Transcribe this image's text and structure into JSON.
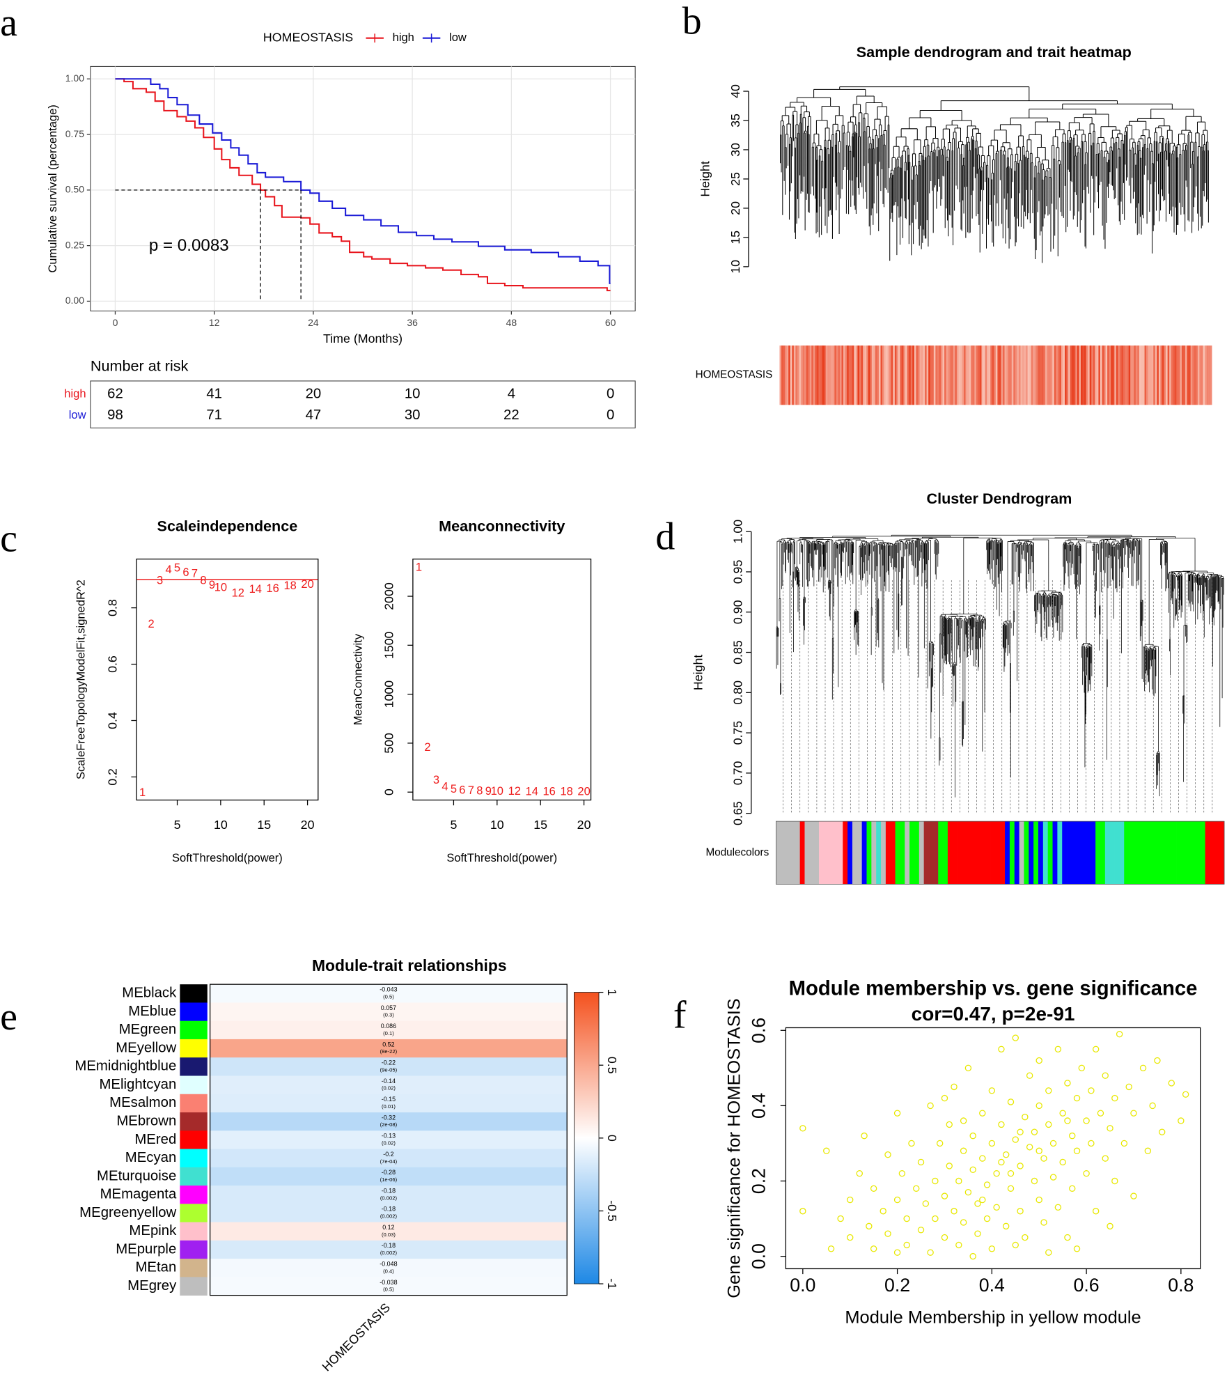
{
  "chart_data": [
    {
      "type": "survival",
      "panel_label": "a",
      "legend_title": "HOMEOSTASIS",
      "xlabel": "Time (Months)",
      "ylabel": "Cumulative survival (percentage)",
      "annotation": "p = 0.0083",
      "xlim": [
        -3.0,
        63.0
      ],
      "ylim": [
        -0.044,
        1.056
      ],
      "xticks": [
        0,
        12,
        24,
        36,
        48,
        60
      ],
      "yticks": [
        {
          "value": 0,
          "label": "0.00"
        },
        0.25,
        {
          "value": 0.5,
          "label": "0.50"
        },
        0.75,
        {
          "value": 1,
          "label": "1.00"
        }
      ],
      "grid": true,
      "median_level": 0.5,
      "series": [
        {
          "name": "high",
          "color": "#e8141c",
          "median": 17.6,
          "x": [
            0,
            1.07,
            2.15,
            3.76,
            4.83,
            5.9,
            7.5,
            8.6,
            9.66,
            10.7,
            12.0,
            12.9,
            13.9,
            15.0,
            16.6,
            17.6,
            18.2,
            19.3,
            20.2,
            22.5,
            23.6,
            24.7,
            26.3,
            27.4,
            28.4,
            30.1,
            31.1,
            33.3,
            35.4,
            37.6,
            39.7,
            41.9,
            44.0,
            45.1,
            47.2,
            49.4,
            59.6,
            60
          ],
          "values": [
            1,
            0.988,
            0.956,
            0.94,
            0.9,
            0.857,
            0.83,
            0.81,
            0.78,
            0.737,
            0.685,
            0.637,
            0.6,
            0.566,
            0.526,
            0.5,
            0.47,
            0.43,
            0.378,
            0.375,
            0.347,
            0.307,
            0.29,
            0.27,
            0.22,
            0.2,
            0.19,
            0.17,
            0.16,
            0.15,
            0.14,
            0.12,
            0.11,
            0.08,
            0.07,
            0.06,
            0.048,
            0.048
          ]
        },
        {
          "name": "low",
          "color": "#1a1ad6",
          "median": 22.5,
          "x": [
            0,
            3.76,
            4.3,
            5.4,
            6.4,
            7.5,
            8.8,
            10.2,
            11.8,
            12.9,
            14,
            15,
            16.1,
            17.2,
            18.2,
            20.4,
            22.5,
            23.6,
            24.7,
            26.3,
            27.9,
            30.1,
            32.2,
            34.3,
            36.5,
            38.6,
            40.8,
            44,
            47.2,
            50.4,
            53.7,
            56.3,
            58.5,
            59.9,
            60
          ],
          "values": [
            1,
            1,
            0.976,
            0.956,
            0.916,
            0.884,
            0.837,
            0.797,
            0.757,
            0.725,
            0.69,
            0.657,
            0.618,
            0.578,
            0.558,
            0.538,
            0.5,
            0.486,
            0.45,
            0.418,
            0.386,
            0.366,
            0.339,
            0.31,
            0.295,
            0.279,
            0.267,
            0.247,
            0.231,
            0.219,
            0.2,
            0.18,
            0.16,
            0.08,
            0.08
          ]
        }
      ],
      "risk_table": {
        "title": "Number at risk",
        "rows": [
          {
            "name": "high",
            "counts": [
              62,
              41,
              20,
              10,
              4,
              0
            ]
          },
          {
            "name": "low",
            "counts": [
              98,
              71,
              47,
              30,
              22,
              0
            ]
          }
        ]
      }
    },
    {
      "type": "dendrogram",
      "panel_label": "b",
      "title": "Sample dendrogram and trait heatmap",
      "ylabel": "Height",
      "ylim": [
        10,
        40
      ],
      "yticks": [
        10,
        15,
        20,
        25,
        30,
        35,
        40
      ],
      "heatmap_label": "HOMEOSTASIS"
    },
    {
      "type": "scatter",
      "marker": "text",
      "panel_label": "c",
      "title": "Scaleindependence",
      "xlabel": "SoftThreshold(power)",
      "ylabel": "ScaleFreeTopologyModelFit,signedR^2",
      "color": "#ee1c1c",
      "hline": 0.9,
      "x": [
        1,
        2,
        3,
        4,
        5,
        6,
        7,
        8,
        9,
        10,
        12,
        14,
        16,
        18,
        20
      ],
      "values": [
        0.143,
        0.741,
        0.895,
        0.933,
        0.939,
        0.923,
        0.92,
        0.895,
        0.879,
        0.87,
        0.851,
        0.864,
        0.867,
        0.876,
        0.882
      ],
      "xlim": [
        0.31,
        21.22
      ],
      "ylim": [
        0.118,
        0.973
      ],
      "xticks": [
        5,
        10,
        15,
        20
      ],
      "yticks": [
        0.2,
        0.4,
        0.6,
        0.8
      ]
    },
    {
      "type": "scatter",
      "marker": "text",
      "title": "Meanconnectivity",
      "xlabel": "SoftThreshold(power)",
      "ylabel": "MeanConnectivity",
      "color": "#ee1c1c",
      "x": [
        1,
        2,
        3,
        4,
        5,
        6,
        7,
        8,
        9,
        10,
        12,
        14,
        16,
        18,
        20
      ],
      "values": [
        2290,
        452,
        118,
        50,
        25,
        15,
        10,
        7,
        5,
        4,
        3,
        2,
        1.5,
        1,
        1
      ],
      "xlim": [
        0.31,
        20.8
      ],
      "ylim": [
        -81,
        2380
      ],
      "xticks": [
        5,
        10,
        15,
        20
      ],
      "yticks": [
        0,
        500,
        1000,
        1500,
        2000
      ]
    },
    {
      "type": "dendrogram",
      "panel_label": "d",
      "title": "Cluster Dendrogram",
      "ylabel": "Height",
      "ylim": [
        0.65,
        1.0
      ],
      "yticks": [
        0.65,
        {
          "value": 0.7,
          "label": "0.70"
        },
        0.75,
        {
          "value": 0.8,
          "label": "0.80"
        },
        0.85,
        {
          "value": 0.9,
          "label": "0.90"
        },
        0.95,
        {
          "value": 1,
          "label": "1.00"
        }
      ],
      "band_label": "Modulecolors",
      "band_colors": [
        "#bebebe",
        "#bebebe",
        "#bebebe",
        "#bebebe",
        "#bebebe",
        "#ff0000",
        "#bebebe",
        "#bebebe",
        "#bebebe",
        "#ffc0cb",
        "#ffc0cb",
        "#ffc0cb",
        "#ffc0cb",
        "#ffc0cb",
        "#ff0000",
        "#0000ff",
        "#bebebe",
        "#bebebe",
        "#0000ff",
        "#00ff00",
        "#bebebe",
        "#40e0d0",
        "#bebebe",
        "#ff0000",
        "#ff0000",
        "#00ff00",
        "#00ff00",
        "#bebebe",
        "#00ff00",
        "#00ff00",
        "#bebebe",
        "#a52a2a",
        "#a52a2a",
        "#a52a2a",
        "#00ff00",
        "#00ff00",
        "#ff0000",
        "#ff0000",
        "#ff0000",
        "#ff0000",
        "#ff0000",
        "#ff0000",
        "#ff0000",
        "#ff0000",
        "#ff0000",
        "#ff0000",
        "#ff0000",
        "#ff0000",
        "#0000ff",
        "#00ff00",
        "#0000ff",
        "#bebebe",
        "#00ff00",
        "#0000ff",
        "#00ff00",
        "#0000ff",
        "#40e0d0",
        "#00ff00",
        "#0000ff",
        "#40e0d0",
        "#0000ff",
        "#0000ff",
        "#0000ff",
        "#0000ff",
        "#0000ff",
        "#0000ff",
        "#0000ff",
        "#00ff00",
        "#00ff00",
        "#40e0d0",
        "#40e0d0",
        "#40e0d0",
        "#40e0d0",
        "#00ff00",
        "#00ff00",
        "#00ff00",
        "#00ff00",
        "#00ff00",
        "#00ff00",
        "#00ff00",
        "#00ff00",
        "#00ff00",
        "#00ff00",
        "#00ff00",
        "#00ff00",
        "#00ff00",
        "#00ff00",
        "#00ff00",
        "#00ff00",
        "#00ff00",
        "#ff0000",
        "#ff0000",
        "#ff0000",
        "#ff0000"
      ]
    },
    {
      "type": "heatmap",
      "panel_label": "e",
      "title": "Module-trait relationships",
      "xlabel": "HOMEOSTASIS",
      "categories": [
        "MEblack",
        "MEblue",
        "MEgreen",
        "MEyellow",
        "MEmidnightblue",
        "MElightcyan",
        "MEsalmon",
        "MEbrown",
        "MEred",
        "MEcyan",
        "MEturquoise",
        "MEmagenta",
        "MEgreenyellow",
        "MEpink",
        "MEpurple",
        "MEtan",
        "MEgrey"
      ],
      "colors": [
        "#000000",
        "#0000ff",
        "#00ff00",
        "#ffff00",
        "#191970",
        "#e0ffff",
        "#fa8072",
        "#a52a2a",
        "#ff0000",
        "#00ffff",
        "#40e0d0",
        "#ff00ff",
        "#adff2f",
        "#ffc0cb",
        "#a020f0",
        "#d2b48c",
        "#bebebe"
      ],
      "values": [
        -0.043,
        0.057,
        0.086,
        0.52,
        -0.22,
        -0.14,
        -0.15,
        -0.32,
        -0.13,
        -0.2,
        -0.28,
        -0.18,
        -0.18,
        0.12,
        -0.18,
        -0.048,
        -0.038
      ],
      "pvalues": [
        0.5,
        0.3,
        0.1,
        8e-22,
        9e-05,
        0.02,
        0.01,
        2e-08,
        0.02,
        0.0007,
        1e-06,
        0.002,
        0.002,
        0.03,
        0.002,
        0.4,
        0.5
      ],
      "pvalue_labels": [
        "(0.5)",
        "(0.3)",
        "(0.1)",
        "(8e-22)",
        "(9e-05)",
        "(0.02)",
        "(0.01)",
        "(2e-08)",
        "(0.02)",
        "(7e-04)",
        "(1e-06)",
        "(0.002)",
        "(0.002)",
        "(0.03)",
        "(0.002)",
        "(0.4)",
        "(0.5)"
      ],
      "clim": [
        -1,
        1
      ],
      "colorscale": [
        "#1e88e5",
        "#ffffff",
        "#f4511e"
      ],
      "colorbar_ticks": [
        -1,
        -0.5,
        0,
        0.5,
        1
      ]
    },
    {
      "type": "scatter",
      "marker": "circle",
      "panel_label": "f",
      "title": "Module membership vs. gene significance",
      "subtitle": "cor=0.47, p=2e-91",
      "xlabel": "Module Membership in yellow module",
      "ylabel": "Gene significance for HOMEOSTASIS",
      "color": "#e8e800",
      "xlim": [
        -0.036,
        0.841
      ],
      "ylim": [
        -0.033,
        0.607
      ],
      "xticks": [
        {
          "value": 0,
          "label": "0.0"
        },
        0.2,
        0.4,
        0.6,
        0.8
      ],
      "yticks": [
        {
          "value": 0,
          "label": "0.0"
        },
        0.2,
        0.4,
        0.6
      ],
      "x": [
        0,
        0,
        0.05,
        0.06,
        0.08,
        0.1,
        0.1,
        0.12,
        0.13,
        0.14,
        0.15,
        0.15,
        0.17,
        0.18,
        0.18,
        0.2,
        0.2,
        0.21,
        0.22,
        0.22,
        0.23,
        0.24,
        0.25,
        0.25,
        0.26,
        0.27,
        0.27,
        0.28,
        0.28,
        0.29,
        0.3,
        0.3,
        0.31,
        0.31,
        0.32,
        0.32,
        0.33,
        0.33,
        0.34,
        0.34,
        0.35,
        0.35,
        0.36,
        0.36,
        0.37,
        0.37,
        0.38,
        0.38,
        0.39,
        0.39,
        0.4,
        0.4,
        0.4,
        0.41,
        0.41,
        0.42,
        0.42,
        0.43,
        0.43,
        0.44,
        0.44,
        0.45,
        0.45,
        0.46,
        0.46,
        0.47,
        0.47,
        0.48,
        0.48,
        0.49,
        0.49,
        0.5,
        0.5,
        0.5,
        0.51,
        0.51,
        0.52,
        0.52,
        0.53,
        0.53,
        0.54,
        0.54,
        0.55,
        0.55,
        0.56,
        0.56,
        0.57,
        0.57,
        0.58,
        0.58,
        0.59,
        0.6,
        0.6,
        0.61,
        0.61,
        0.62,
        0.62,
        0.63,
        0.64,
        0.64,
        0.65,
        0.66,
        0.66,
        0.67,
        0.68,
        0.69,
        0.7,
        0.7,
        0.72,
        0.73,
        0.74,
        0.76,
        0.78,
        0.8,
        0.81,
        0.75,
        0.65,
        0.45,
        0.3,
        0.2,
        0.58,
        0.36,
        0.52,
        0.42,
        0.46,
        0.38,
        0.5,
        0.44,
        0.34,
        0.56
      ],
      "values": [
        0.34,
        0.12,
        0.28,
        0.02,
        0.1,
        0.15,
        0.05,
        0.22,
        0.32,
        0.08,
        0.18,
        0.02,
        0.12,
        0.27,
        0.06,
        0.38,
        0.15,
        0.22,
        0.03,
        0.1,
        0.3,
        0.18,
        0.07,
        0.25,
        0.14,
        0.4,
        0.01,
        0.2,
        0.1,
        0.3,
        0.16,
        0.05,
        0.24,
        0.35,
        0.12,
        0.45,
        0.2,
        0.03,
        0.28,
        0.09,
        0.17,
        0.5,
        0.32,
        0.23,
        0.06,
        0.14,
        0.38,
        0.26,
        0.1,
        0.19,
        0.3,
        0.44,
        0.02,
        0.22,
        0.13,
        0.35,
        0.55,
        0.27,
        0.08,
        0.18,
        0.41,
        0.31,
        0.58,
        0.24,
        0.12,
        0.37,
        0.05,
        0.29,
        0.48,
        0.2,
        0.33,
        0.4,
        0.15,
        0.52,
        0.26,
        0.09,
        0.35,
        0.44,
        0.21,
        0.3,
        0.55,
        0.13,
        0.38,
        0.25,
        0.46,
        0.05,
        0.32,
        0.18,
        0.42,
        0.28,
        0.5,
        0.36,
        0.22,
        0.44,
        0.3,
        0.55,
        0.12,
        0.38,
        0.26,
        0.48,
        0.34,
        0.42,
        0.2,
        0.59,
        0.3,
        0.45,
        0.38,
        0.16,
        0.5,
        0.28,
        0.4,
        0.33,
        0.46,
        0.36,
        0.43,
        0.52,
        0.08,
        0.03,
        0.42,
        0.01,
        0.02,
        0,
        0.01,
        0.25,
        0.33,
        0.15,
        0.28,
        0.22,
        0.36,
        0.36
      ]
    }
  ]
}
